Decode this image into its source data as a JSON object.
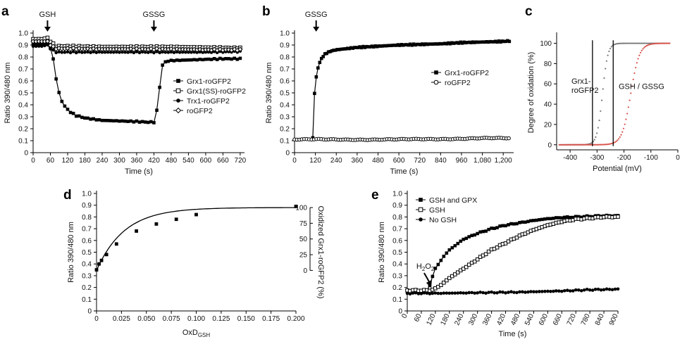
{
  "chart_data": [
    {
      "panel": "a",
      "type": "line",
      "xlabel": "Time (s)",
      "ylabel": "Ratio 390/480 nm",
      "xlim": [
        0,
        735
      ],
      "ylim": [
        0,
        1.0
      ],
      "xticks": [
        0,
        60,
        120,
        180,
        240,
        300,
        360,
        420,
        480,
        540,
        600,
        660,
        720
      ],
      "yticks": [
        "0",
        "0.1",
        "0.2",
        "0.3",
        "0.4",
        "0.5",
        "0.6",
        "0.7",
        "0.8",
        "0.9",
        "1.0"
      ],
      "annotations": [
        {
          "text": "GSH",
          "x": 50
        },
        {
          "text": "GSSG",
          "x": 420
        }
      ],
      "legend_position": "right",
      "series": [
        {
          "name": "Grx1-roGFP2",
          "marker": "square-filled",
          "points": [
            [
              0,
              0.91
            ],
            [
              30,
              0.91
            ],
            [
              50,
              0.91
            ],
            [
              60,
              0.88
            ],
            [
              70,
              0.78
            ],
            [
              80,
              0.62
            ],
            [
              90,
              0.5
            ],
            [
              100,
              0.43
            ],
            [
              110,
              0.39
            ],
            [
              120,
              0.36
            ],
            [
              135,
              0.33
            ],
            [
              150,
              0.31
            ],
            [
              180,
              0.29
            ],
            [
              210,
              0.28
            ],
            [
              240,
              0.27
            ],
            [
              300,
              0.265
            ],
            [
              360,
              0.26
            ],
            [
              400,
              0.255
            ],
            [
              420,
              0.255
            ],
            [
              430,
              0.35
            ],
            [
              440,
              0.55
            ],
            [
              450,
              0.73
            ],
            [
              460,
              0.76
            ],
            [
              480,
              0.77
            ],
            [
              540,
              0.775
            ],
            [
              600,
              0.78
            ],
            [
              660,
              0.785
            ],
            [
              720,
              0.785
            ]
          ]
        },
        {
          "name": "Grx1(SS)-roGFP2",
          "marker": "square-open",
          "points": [
            [
              0,
              0.95
            ],
            [
              30,
              0.95
            ],
            [
              50,
              0.96
            ],
            [
              60,
              0.93
            ],
            [
              80,
              0.89
            ],
            [
              120,
              0.89
            ],
            [
              240,
              0.885
            ],
            [
              360,
              0.885
            ],
            [
              480,
              0.885
            ],
            [
              600,
              0.88
            ],
            [
              720,
              0.875
            ]
          ]
        },
        {
          "name": "Trx1-roGFP2",
          "marker": "circle-filled",
          "points": [
            [
              0,
              0.89
            ],
            [
              30,
              0.89
            ],
            [
              50,
              0.9
            ],
            [
              60,
              0.87
            ],
            [
              80,
              0.84
            ],
            [
              120,
              0.84
            ],
            [
              240,
              0.84
            ],
            [
              360,
              0.84
            ],
            [
              480,
              0.84
            ],
            [
              600,
              0.84
            ],
            [
              720,
              0.845
            ]
          ]
        },
        {
          "name": "roGFP2",
          "marker": "diamond-open",
          "points": [
            [
              0,
              0.93
            ],
            [
              30,
              0.93
            ],
            [
              50,
              0.93
            ],
            [
              60,
              0.9
            ],
            [
              80,
              0.87
            ],
            [
              120,
              0.87
            ],
            [
              240,
              0.865
            ],
            [
              360,
              0.865
            ],
            [
              480,
              0.865
            ],
            [
              600,
              0.86
            ],
            [
              720,
              0.86
            ]
          ]
        }
      ]
    },
    {
      "panel": "b",
      "type": "line",
      "xlabel": "Time (s)",
      "ylabel": "Ratio 390/480 nm",
      "xlim": [
        0,
        1260
      ],
      "ylim": [
        0,
        1.0
      ],
      "xticks": [
        "0",
        "120",
        "240",
        "360",
        "480",
        "600",
        "720",
        "840",
        "960",
        "1,080",
        "1,200"
      ],
      "yticks": [
        "0",
        "0.1",
        "0.2",
        "0.3",
        "0.4",
        "0.5",
        "0.6",
        "0.7",
        "0.8",
        "0.9",
        "1.0"
      ],
      "annotations": [
        {
          "text": "GSSG",
          "x": 100
        }
      ],
      "legend_position": "right",
      "series": [
        {
          "name": "Grx1-roGFP2",
          "marker": "square-filled",
          "points": [
            [
              105,
              0.12
            ],
            [
              110,
              0.3
            ],
            [
              115,
              0.5
            ],
            [
              120,
              0.58
            ],
            [
              130,
              0.68
            ],
            [
              140,
              0.74
            ],
            [
              160,
              0.8
            ],
            [
              180,
              0.83
            ],
            [
              210,
              0.85
            ],
            [
              240,
              0.86
            ],
            [
              300,
              0.87
            ],
            [
              360,
              0.88
            ],
            [
              480,
              0.89
            ],
            [
              600,
              0.9
            ],
            [
              720,
              0.905
            ],
            [
              840,
              0.91
            ],
            [
              960,
              0.92
            ],
            [
              1080,
              0.925
            ],
            [
              1200,
              0.93
            ],
            [
              1240,
              0.935
            ]
          ]
        },
        {
          "name": "roGFP2",
          "marker": "circle-open",
          "points": [
            [
              0,
              0.11
            ],
            [
              120,
              0.11
            ],
            [
              360,
              0.11
            ],
            [
              600,
              0.11
            ],
            [
              840,
              0.115
            ],
            [
              1080,
              0.12
            ],
            [
              1240,
              0.12
            ]
          ]
        }
      ]
    },
    {
      "panel": "c",
      "type": "scatter",
      "xlabel": "Potential (mV)",
      "ylabel": "Degree of oxidation (%)",
      "xlim": [
        -450,
        0
      ],
      "ylim": [
        -5,
        108
      ],
      "xticks": [
        -400,
        -300,
        -200,
        -100,
        0
      ],
      "yticks": [
        0,
        20,
        40,
        60,
        80,
        100
      ],
      "annotations": [
        {
          "text": "Grx1-",
          "x": -395,
          "y": 60
        },
        {
          "text": "roGFP2",
          "x": -395,
          "y": 51
        },
        {
          "text": "GSH / GSSG",
          "x": -135,
          "y": 55
        }
      ],
      "vlines": [
        -317,
        -240
      ],
      "series": [
        {
          "name": "Grx1-roGFP2",
          "color": "#777777",
          "midpoint": -280,
          "scale": 10
        },
        {
          "name": "GSH / GSSG",
          "color": "#d8534b",
          "midpoint": -175,
          "scale": 16
        }
      ]
    },
    {
      "panel": "d",
      "type": "scatter",
      "xlabel": "OxD",
      "xlabel_sub": "GSH",
      "ylabel": "Ratio 390/480 nm",
      "ylabel_right": "Oxidized Grx1-roGFP2 (%)",
      "xlim": [
        0,
        0.2
      ],
      "ylim": [
        0,
        1.0
      ],
      "xticks": [
        "0",
        "0.025",
        "0.050",
        "0.075",
        "0.100",
        "0.125",
        "0.150",
        "0.175",
        "0.200"
      ],
      "yticks": [
        "0",
        "0.1",
        "0.2",
        "0.3",
        "0.4",
        "0.5",
        "0.6",
        "0.7",
        "0.8",
        "0.9",
        "1.0"
      ],
      "yticks_right": [
        0,
        25,
        50,
        75,
        100
      ],
      "points": [
        [
          0,
          0.35
        ],
        [
          0.0025,
          0.4
        ],
        [
          0.005,
          0.43
        ],
        [
          0.01,
          0.48
        ],
        [
          0.02,
          0.57
        ],
        [
          0.04,
          0.68
        ],
        [
          0.06,
          0.74
        ],
        [
          0.08,
          0.78
        ],
        [
          0.1,
          0.82
        ],
        [
          0.2,
          0.89
        ]
      ],
      "fit": {
        "y0": 0.345,
        "ymax": 0.88,
        "k": 0.028
      }
    },
    {
      "panel": "e",
      "type": "line",
      "xlabel": "Time (s)",
      "ylabel": "Ratio 390/480 nm",
      "xlim": [
        0,
        900
      ],
      "ylim": [
        0,
        1.0
      ],
      "xticks": [
        0,
        60,
        120,
        180,
        240,
        300,
        360,
        420,
        480,
        540,
        600,
        660,
        720,
        780,
        840,
        900
      ],
      "yticks": [
        "0",
        "0.1",
        "0.2",
        "0.3",
        "0.4",
        "0.5",
        "0.6",
        "0.7",
        "0.8",
        "0.9",
        "1.0"
      ],
      "annotations": [
        {
          "text": "H",
          "sub": "2",
          "text2": "O",
          "sub2": "2",
          "x": 75
        }
      ],
      "legend_position": "top-left",
      "series": [
        {
          "name": "GSH and GPX",
          "marker": "square-filled",
          "points": [
            [
              0,
              0.175
            ],
            [
              90,
              0.175
            ],
            [
              100,
              0.25
            ],
            [
              120,
              0.36
            ],
            [
              150,
              0.45
            ],
            [
              180,
              0.52
            ],
            [
              240,
              0.61
            ],
            [
              300,
              0.66
            ],
            [
              360,
              0.7
            ],
            [
              420,
              0.73
            ],
            [
              480,
              0.75
            ],
            [
              540,
              0.77
            ],
            [
              600,
              0.785
            ],
            [
              660,
              0.795
            ],
            [
              720,
              0.8
            ],
            [
              780,
              0.805
            ],
            [
              840,
              0.81
            ],
            [
              900,
              0.81
            ]
          ]
        },
        {
          "name": "GSH",
          "marker": "square-open",
          "points": [
            [
              0,
              0.175
            ],
            [
              100,
              0.175
            ],
            [
              120,
              0.19
            ],
            [
              150,
              0.23
            ],
            [
              180,
              0.28
            ],
            [
              240,
              0.36
            ],
            [
              300,
              0.44
            ],
            [
              360,
              0.52
            ],
            [
              420,
              0.58
            ],
            [
              480,
              0.64
            ],
            [
              540,
              0.69
            ],
            [
              600,
              0.73
            ],
            [
              660,
              0.76
            ],
            [
              720,
              0.78
            ],
            [
              780,
              0.79
            ],
            [
              840,
              0.8
            ],
            [
              900,
              0.8
            ]
          ]
        },
        {
          "name": "No GSH",
          "marker": "circle-filled",
          "points": [
            [
              0,
              0.15
            ],
            [
              120,
              0.15
            ],
            [
              300,
              0.155
            ],
            [
              480,
              0.16
            ],
            [
              660,
              0.17
            ],
            [
              780,
              0.18
            ],
            [
              900,
              0.185
            ]
          ]
        }
      ]
    }
  ]
}
